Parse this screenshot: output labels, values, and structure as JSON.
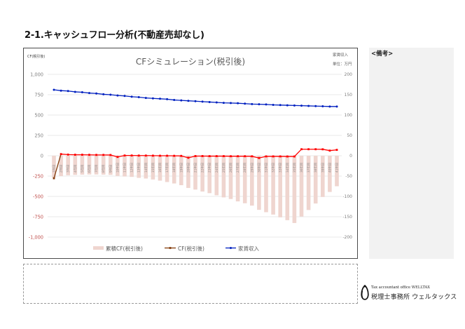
{
  "page": {
    "title": "2-1.キャッシュフロー分析(不動産売却なし)"
  },
  "notes": {
    "label": "<備考>",
    "content": ""
  },
  "footer_box": {
    "content": ""
  },
  "logo": {
    "icon": "penguin-icon",
    "line1": "Tax accountant office WELLTAX",
    "line2": "税理士事務所 ウェルタックス"
  },
  "chart_data": {
    "type": "bar",
    "title": "CFシミュレーション(税引後)",
    "ylabel": "CF(税引後)",
    "y2label": "家賃収入",
    "y2unit": "単位：万円",
    "xlabel": "",
    "ylim": [
      -1000,
      1000
    ],
    "y2lim": [
      -200,
      200
    ],
    "grid": true,
    "legend": "bottom",
    "negative_tick_color": "#c0504d",
    "yticks": [
      {
        "value": 1000,
        "label": "1,000"
      },
      {
        "value": 750,
        "label": "750"
      },
      {
        "value": 500,
        "label": "500"
      },
      {
        "value": 250,
        "label": "250"
      },
      {
        "value": 0,
        "label": "0"
      },
      {
        "value": -250,
        "label": "-250"
      },
      {
        "value": -500,
        "label": "-500"
      },
      {
        "value": -750,
        "label": "-750"
      },
      {
        "value": -1000,
        "label": "-1,000"
      }
    ],
    "y2ticks": [
      {
        "value": 200,
        "label": "200"
      },
      {
        "value": 150,
        "label": "150"
      },
      {
        "value": 100,
        "label": "100"
      },
      {
        "value": 50,
        "label": "50"
      },
      {
        "value": 0,
        "label": "0"
      },
      {
        "value": -50,
        "label": "-50"
      },
      {
        "value": -100,
        "label": "-100"
      },
      {
        "value": -150,
        "label": "-150"
      },
      {
        "value": -200,
        "label": "-200"
      }
    ],
    "categories": [
      "1年目",
      "2年目",
      "3年目",
      "4年目",
      "5年目",
      "6年目",
      "7年目",
      "8年目",
      "9年目",
      "10年目",
      "11年目",
      "12年目",
      "13年目",
      "14年目",
      "15年目",
      "16年目",
      "17年目",
      "18年目",
      "19年目",
      "20年目",
      "21年目",
      "22年目",
      "23年目",
      "24年目",
      "25年目",
      "26年目",
      "27年目",
      "28年目",
      "29年目",
      "30年目",
      "31年目",
      "32年目",
      "33年目",
      "34年目",
      "35年目",
      "36年目",
      "37年目",
      "38年目",
      "39年目",
      "40年目",
      "41年目"
    ],
    "series": [
      {
        "name": "累積CF(税引後)",
        "type": "bar",
        "axis": "left",
        "color": "#efd5cf",
        "values": [
          -270,
          -250,
          -240,
          -235,
          -232,
          -230,
          -230,
          -232,
          -235,
          -248,
          -255,
          -260,
          -272,
          -280,
          -292,
          -306,
          -323,
          -341,
          -362,
          -396,
          -416,
          -440,
          -460,
          -486,
          -512,
          -532,
          -561,
          -584,
          -613,
          -665,
          -694,
          -723,
          -757,
          -792,
          -827,
          -747,
          -667,
          -587,
          -507,
          -445,
          -375
        ]
      },
      {
        "name": "CF(税引後)",
        "type": "line",
        "axis": "left",
        "color": "#ff0000",
        "legend_color": "#843c0c",
        "values": [
          -277,
          20,
          14,
          12,
          12,
          11,
          10,
          10,
          9,
          -15,
          3,
          3,
          2,
          2,
          1,
          0,
          0,
          -1,
          -2,
          -25,
          -4,
          -4,
          -5,
          -5,
          -5,
          -6,
          -6,
          -6,
          -7,
          -28,
          -8,
          -8,
          -8,
          -9,
          -9,
          80,
          80,
          80,
          79,
          63,
          72
        ]
      },
      {
        "name": "家賃収入",
        "type": "line",
        "axis": "right",
        "color": "#0020c0",
        "values": [
          162,
          160,
          159,
          157,
          156,
          154,
          153,
          151,
          150,
          148,
          147,
          145,
          144,
          142,
          141,
          140,
          139,
          137,
          136,
          135,
          134,
          133,
          132,
          131,
          130,
          129.5,
          129,
          128,
          127,
          126.5,
          126,
          125,
          124.5,
          124,
          123.5,
          123,
          122.5,
          122,
          121.5,
          121,
          121
        ]
      }
    ]
  }
}
